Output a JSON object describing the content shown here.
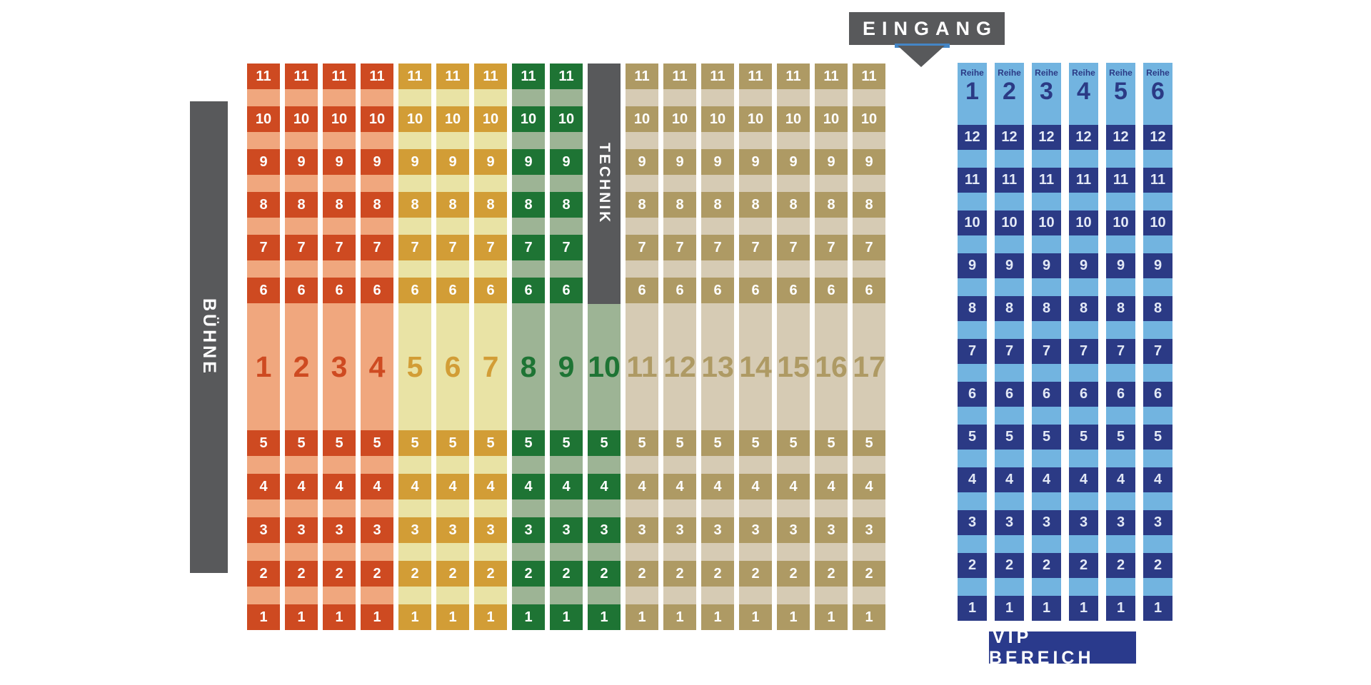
{
  "stage": {
    "label": "BÜHNE",
    "color": "#58595B",
    "text_color": "#ffffff"
  },
  "technik": {
    "label": "TECHNIK",
    "color": "#58595B",
    "text_color": "#ffffff"
  },
  "entrance": {
    "label": "EINGANG",
    "box_color": "#58595B",
    "text_color": "#ffffff",
    "arrow_color": "#58595B",
    "accent_color": "#4486C6"
  },
  "main_grid": {
    "top_row_numbers": [
      11,
      10,
      9,
      8,
      7,
      6
    ],
    "bottom_row_numbers": [
      5,
      4,
      3,
      2,
      1
    ],
    "technik_column": 10,
    "sections": [
      {
        "name": "red",
        "dark": "#CE4A21",
        "light": "#F0A77E",
        "columns": [
          1,
          2,
          3,
          4
        ]
      },
      {
        "name": "gold",
        "dark": "#D29D36",
        "light": "#E9E3A5",
        "columns": [
          5,
          6,
          7
        ]
      },
      {
        "name": "green",
        "dark": "#1E7434",
        "light": "#9DB495",
        "columns": [
          8,
          9,
          10
        ]
      },
      {
        "name": "tan",
        "dark": "#AE9A64",
        "light": "#D6CBB4",
        "columns": [
          11,
          12,
          13,
          14,
          15,
          16,
          17
        ]
      }
    ],
    "cell_text_color": "#ffffff"
  },
  "vip": {
    "area_label": "VIP BEREICH",
    "row_label": "Reihe",
    "row_numbers": [
      1,
      2,
      3,
      4,
      5,
      6
    ],
    "seat_numbers": [
      12,
      11,
      10,
      9,
      8,
      7,
      6,
      5,
      4,
      3,
      2,
      1
    ],
    "light": "#72B4E0",
    "dark": "#2B3A85",
    "cell_text": "#E3E9F6",
    "header_text": "#2B3A85",
    "label_box_color": "#2A3A8C",
    "label_text_color": "#ffffff"
  }
}
